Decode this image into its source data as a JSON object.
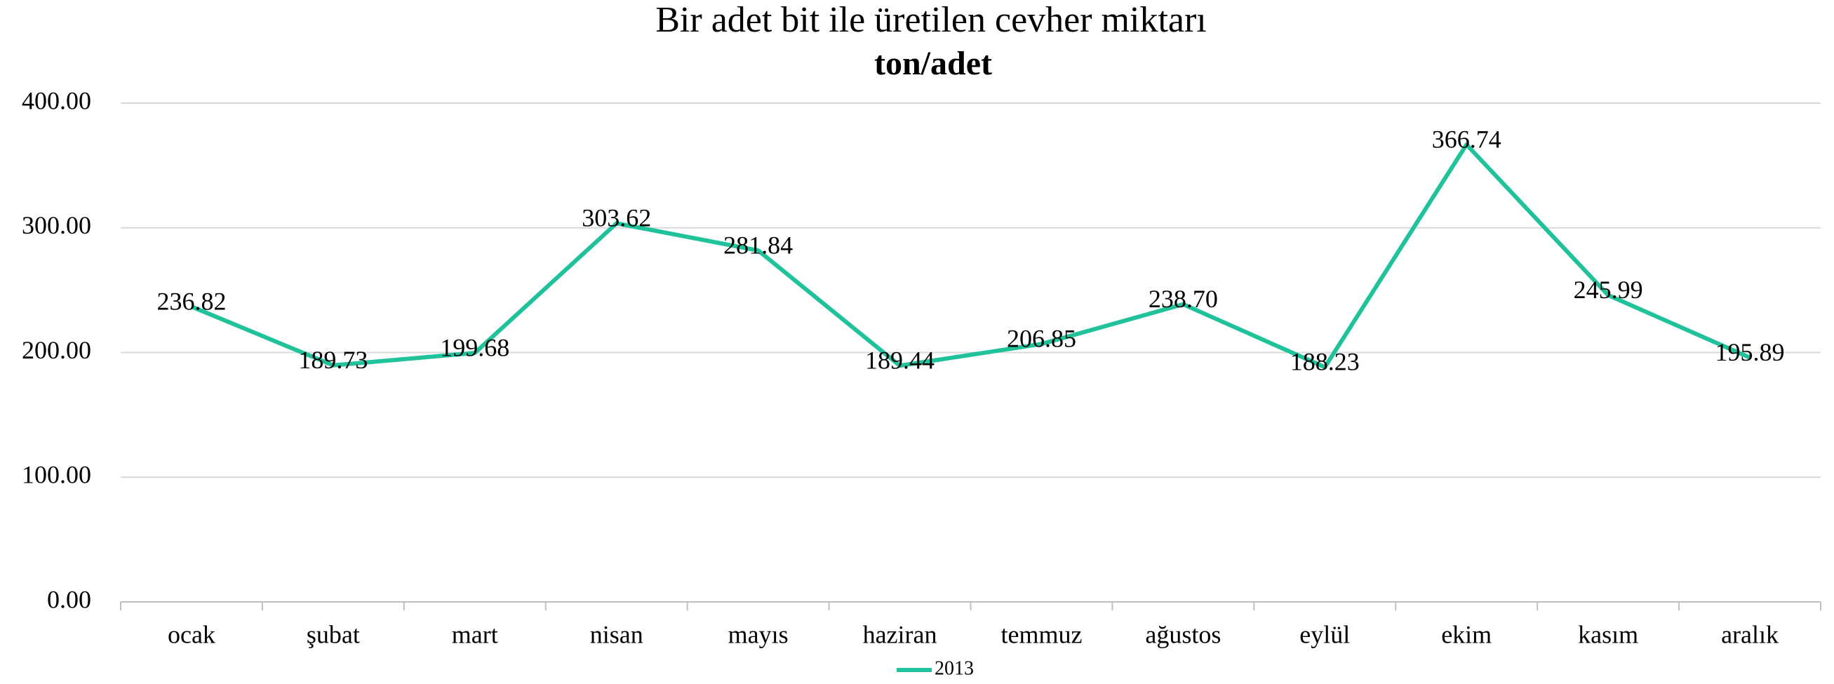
{
  "chart_data": {
    "type": "line",
    "title": "Bir adet bit ile üretilen cevher miktarı",
    "subtitle": "ton/adet",
    "categories": [
      "ocak",
      "şubat",
      "mart",
      "nisan",
      "mayıs",
      "haziran",
      "temmuz",
      "ağustos",
      "eylül",
      "ekim",
      "kasım",
      "aralık"
    ],
    "series": [
      {
        "name": "2013",
        "color": "#20c29c",
        "values": [
          236.82,
          189.73,
          199.68,
          303.62,
          281.84,
          189.44,
          206.85,
          238.7,
          188.23,
          366.74,
          245.99,
          195.89
        ],
        "value_labels": [
          "236.82",
          "189.73",
          "199.68",
          "303.62",
          "281.84",
          "189.44",
          "206.85",
          "238.70",
          "188.23",
          "366.74",
          "245.99",
          "195.89"
        ]
      }
    ],
    "ylim": [
      0,
      400
    ],
    "yticks": [
      {
        "value": 0,
        "label": "0.00"
      },
      {
        "value": 100,
        "label": "100.00"
      },
      {
        "value": 200,
        "label": "200.00"
      },
      {
        "value": 300,
        "label": "300.00"
      },
      {
        "value": 400,
        "label": "400.00"
      }
    ],
    "grid": true,
    "legend": "bottom"
  }
}
